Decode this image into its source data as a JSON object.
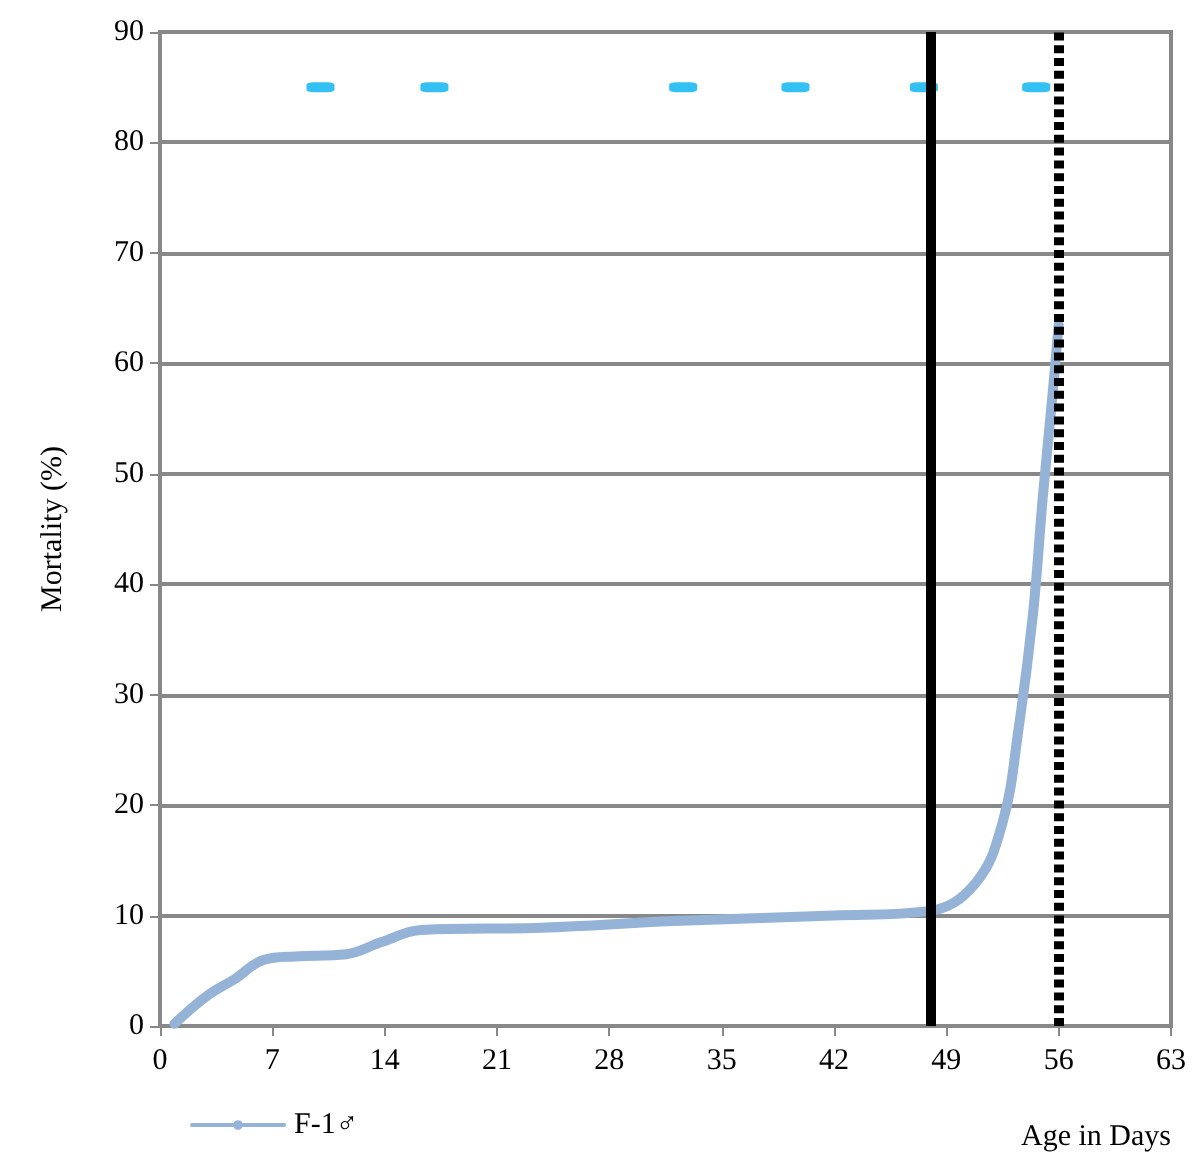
{
  "chart_data": {
    "type": "line",
    "xlabel": "Age in Days",
    "ylabel": "Mortality (%)",
    "xlim": [
      0,
      63
    ],
    "xticks": [
      0,
      7,
      14,
      21,
      28,
      35,
      42,
      49,
      56,
      63
    ],
    "ylim": [
      0,
      90
    ],
    "yticks": [
      0,
      10,
      20,
      30,
      40,
      50,
      60,
      70,
      80,
      90
    ],
    "grid": "y",
    "legend": "bottom left",
    "line_style": "solid",
    "series": [
      {
        "name": "F-1♂",
        "color": "#95b3d7",
        "x": [
          0.9,
          2.9,
          4.6,
          6.5,
          8.4,
          11.6,
          13.8,
          16.3,
          23.8,
          32,
          42,
          47.9,
          50.8,
          52.5,
          53.5,
          54.4,
          55,
          55.6,
          56
        ],
        "values": [
          0.2,
          2.7,
          4.2,
          6,
          6.3,
          6.5,
          7.6,
          8.7,
          8.9,
          9.5,
          10,
          10.4,
          12.9,
          18.4,
          26.9,
          37.3,
          47.7,
          56.9,
          63.5
        ]
      },
      {
        "type": "scatter",
        "marker": "square",
        "color": "#00b0f0",
        "x": [
          10,
          17.1,
          32.6,
          39.6,
          47.6,
          54.6
        ],
        "values": [
          85,
          85,
          85,
          85,
          85,
          85
        ]
      }
    ],
    "ref_lines": [
      {
        "axis": "x",
        "value": 48,
        "color": "#000000",
        "line_style": "solid"
      },
      {
        "axis": "x",
        "value": 56,
        "color": "#000000",
        "line_style": "dashed"
      }
    ]
  }
}
